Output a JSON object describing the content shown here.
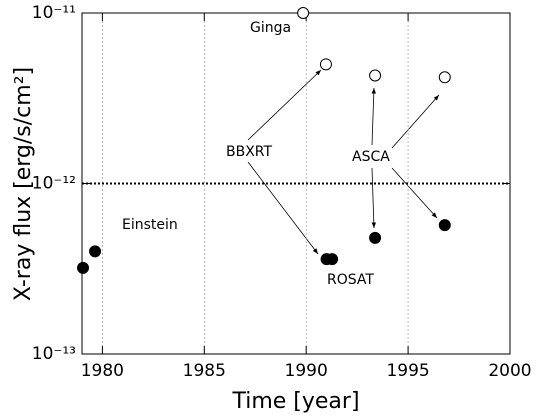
{
  "chart_data": {
    "type": "scatter",
    "xlabel": "Time [year]",
    "ylabel": "X-ray flux [erg/s/cm²]",
    "log_y": true,
    "grid": true,
    "xlim": [
      1979,
      2000
    ],
    "xticks": [
      1980,
      1985,
      1990,
      1995,
      2000
    ],
    "ylim": [
      1e-13,
      1e-11
    ],
    "yticks": [
      {
        "value": 1e-13,
        "label": "10⁻¹³"
      },
      {
        "value": 1e-12,
        "label": "10⁻¹²"
      },
      {
        "value": 1e-11,
        "label": "10⁻¹¹"
      }
    ],
    "hline": 1e-12,
    "series": [
      {
        "marker": "open",
        "color": "#000000",
        "x": [
          1989.85,
          1990.97,
          1993.38,
          1996.8
        ],
        "values": [
          1e-11,
          5e-12,
          4.3e-12,
          4.2e-12
        ]
      },
      {
        "marker": "filled",
        "color": "#000000",
        "x": [
          1979.05,
          1979.64,
          1991.0,
          1991.27,
          1993.38,
          1996.8
        ],
        "values": [
          3.2e-13,
          4e-13,
          3.6e-13,
          3.6e-13,
          4.8e-13,
          5.7e-13
        ]
      }
    ],
    "annotations": [
      "Einstein",
      "Ginga",
      "BBXRT",
      "ASCA",
      "ROSAT"
    ]
  }
}
